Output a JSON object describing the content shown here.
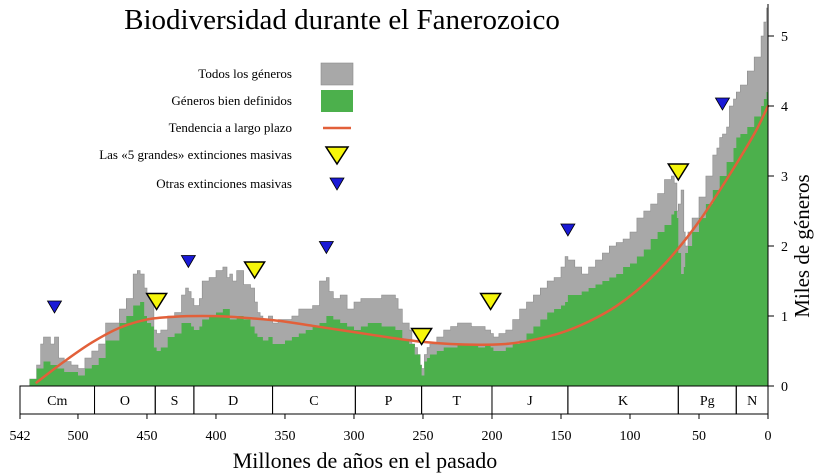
{
  "colors": {
    "all_genera": "#a8a8a8",
    "well_defined": "#4cb04c",
    "trend": "#e2603a",
    "big_five": "#f6f60a",
    "other_extinction": "#1a1ad6"
  },
  "chart_data": {
    "type": "area",
    "title": "Biodiversidad durante el Fanerozoico",
    "xlabel": "Millones de años en el pasado",
    "ylabel": "Miles de géneros",
    "xlim": [
      542,
      0
    ],
    "ylim": [
      0,
      5.5
    ],
    "x_ticks": [
      542,
      500,
      450,
      400,
      350,
      300,
      250,
      200,
      150,
      100,
      50,
      0
    ],
    "y_ticks": [
      0,
      1,
      2,
      3,
      4,
      5
    ],
    "legend": [
      {
        "key": "all",
        "label": "Todos los géneros",
        "marker": "gray-square"
      },
      {
        "key": "defined",
        "label": "Géneros bien definidos",
        "marker": "green-square"
      },
      {
        "key": "trend",
        "label": "Tendencia a largo plazo",
        "marker": "orange-line"
      },
      {
        "key": "big5",
        "label": "Las «5 grandes» extinciones masivas",
        "marker": "yellow-triangle"
      },
      {
        "key": "other",
        "label": "Otras extinciones masivas",
        "marker": "blue-triangle"
      }
    ],
    "periods": [
      {
        "label": "Cm",
        "start": 542,
        "end": 488
      },
      {
        "label": "O",
        "start": 488,
        "end": 444
      },
      {
        "label": "S",
        "start": 444,
        "end": 416
      },
      {
        "label": "D",
        "start": 416,
        "end": 359
      },
      {
        "label": "C",
        "start": 359,
        "end": 299
      },
      {
        "label": "P",
        "start": 299,
        "end": 251
      },
      {
        "label": "T",
        "start": 251,
        "end": 200
      },
      {
        "label": "J",
        "start": 200,
        "end": 145
      },
      {
        "label": "K",
        "start": 145,
        "end": 65
      },
      {
        "label": "Pg",
        "start": 65,
        "end": 23
      },
      {
        "label": "N",
        "start": 23,
        "end": 0
      }
    ],
    "series": [
      {
        "name": "Todos los géneros",
        "x": [
          542,
          535,
          530,
          527,
          525,
          520,
          517,
          514,
          510,
          505,
          500,
          495,
          490,
          488,
          485,
          480,
          470,
          465,
          460,
          457,
          455,
          452,
          450,
          447,
          445,
          443,
          440,
          435,
          430,
          425,
          422,
          420,
          418,
          416,
          412,
          410,
          405,
          400,
          395,
          392,
          390,
          388,
          385,
          380,
          375,
          372,
          370,
          368,
          366,
          362,
          359,
          355,
          350,
          345,
          340,
          335,
          330,
          325,
          320,
          318,
          315,
          310,
          305,
          300,
          295,
          290,
          285,
          280,
          275,
          270,
          268,
          265,
          262,
          260,
          258,
          256,
          254,
          252,
          251,
          249,
          247,
          245,
          240,
          235,
          230,
          225,
          220,
          215,
          210,
          205,
          201,
          199,
          195,
          190,
          185,
          180,
          175,
          170,
          165,
          160,
          155,
          150,
          147,
          145,
          140,
          135,
          130,
          125,
          120,
          115,
          110,
          105,
          100,
          95,
          90,
          85,
          80,
          75,
          70,
          68,
          66,
          65,
          63,
          61,
          60,
          58,
          55,
          50,
          45,
          40,
          37,
          35,
          33,
          30,
          28,
          25,
          23,
          20,
          15,
          10,
          5,
          3,
          1,
          0
        ],
        "values": [
          0.0,
          0.1,
          0.3,
          0.6,
          0.7,
          0.6,
          0.7,
          0.4,
          0.35,
          0.3,
          0.25,
          0.4,
          0.5,
          0.5,
          0.6,
          0.9,
          1.1,
          1.25,
          1.6,
          1.65,
          1.6,
          1.4,
          1.3,
          1.25,
          0.8,
          0.75,
          0.8,
          1.0,
          1.05,
          1.3,
          1.4,
          1.35,
          1.25,
          1.15,
          1.25,
          1.5,
          1.55,
          1.65,
          1.7,
          1.55,
          1.6,
          1.5,
          1.65,
          1.45,
          1.4,
          1.2,
          1.05,
          1.0,
          0.95,
          1.0,
          0.9,
          0.95,
          0.95,
          1.0,
          1.1,
          1.1,
          1.15,
          1.5,
          1.55,
          1.35,
          1.25,
          1.3,
          1.1,
          1.2,
          1.25,
          1.25,
          1.25,
          1.3,
          1.3,
          1.25,
          1.1,
          0.9,
          0.9,
          0.8,
          0.6,
          0.55,
          0.45,
          0.3,
          0.25,
          0.45,
          0.55,
          0.6,
          0.7,
          0.8,
          0.85,
          0.9,
          0.9,
          0.85,
          0.85,
          0.8,
          0.75,
          0.7,
          0.75,
          0.8,
          0.95,
          1.1,
          1.2,
          1.3,
          1.4,
          1.5,
          1.55,
          1.7,
          1.85,
          1.8,
          1.7,
          1.6,
          1.7,
          1.8,
          1.9,
          2.0,
          2.05,
          2.1,
          2.2,
          2.4,
          2.5,
          2.6,
          2.75,
          2.95,
          3.0,
          2.9,
          2.5,
          2.6,
          2.8,
          2.2,
          2.0,
          2.2,
          2.4,
          2.7,
          3.0,
          3.3,
          3.4,
          3.55,
          3.6,
          3.7,
          4.0,
          4.1,
          4.2,
          4.3,
          4.5,
          4.7,
          5.0,
          5.2,
          5.4,
          5.45
        ]
      },
      {
        "name": "Géneros bien definidos",
        "x": [
          542,
          535,
          530,
          525,
          520,
          515,
          510,
          505,
          500,
          495,
          490,
          488,
          485,
          480,
          470,
          465,
          460,
          455,
          452,
          450,
          447,
          445,
          443,
          440,
          435,
          430,
          425,
          420,
          418,
          416,
          412,
          410,
          405,
          400,
          395,
          390,
          385,
          380,
          375,
          372,
          370,
          366,
          362,
          359,
          355,
          350,
          345,
          340,
          335,
          330,
          325,
          320,
          315,
          310,
          305,
          300,
          295,
          290,
          285,
          280,
          275,
          270,
          265,
          260,
          256,
          252,
          251,
          249,
          247,
          245,
          240,
          235,
          230,
          225,
          220,
          215,
          210,
          205,
          201,
          199,
          195,
          190,
          185,
          180,
          175,
          170,
          165,
          160,
          155,
          150,
          147,
          145,
          140,
          135,
          130,
          125,
          120,
          115,
          110,
          105,
          100,
          95,
          90,
          85,
          80,
          75,
          70,
          68,
          66,
          65,
          63,
          61,
          60,
          58,
          55,
          50,
          45,
          40,
          35,
          30,
          25,
          23,
          20,
          15,
          10,
          5,
          3,
          1,
          0
        ],
        "values": [
          0.0,
          0.1,
          0.25,
          0.35,
          0.3,
          0.25,
          0.2,
          0.2,
          0.15,
          0.25,
          0.3,
          0.3,
          0.4,
          0.65,
          0.9,
          1.0,
          1.15,
          1.2,
          1.0,
          0.9,
          0.85,
          0.55,
          0.5,
          0.55,
          0.7,
          0.75,
          0.9,
          0.9,
          0.85,
          0.8,
          0.85,
          0.95,
          1.0,
          1.05,
          1.1,
          0.95,
          1.0,
          0.95,
          0.85,
          0.75,
          0.7,
          0.65,
          0.7,
          0.6,
          0.6,
          0.65,
          0.7,
          0.75,
          0.8,
          0.85,
          0.9,
          1.0,
          0.95,
          0.9,
          0.85,
          0.8,
          0.85,
          0.9,
          0.9,
          0.85,
          0.85,
          0.8,
          0.65,
          0.6,
          0.45,
          0.3,
          0.15,
          0.35,
          0.4,
          0.45,
          0.5,
          0.55,
          0.55,
          0.6,
          0.6,
          0.6,
          0.55,
          0.6,
          0.55,
          0.5,
          0.5,
          0.55,
          0.6,
          0.65,
          0.75,
          0.85,
          0.95,
          1.05,
          1.1,
          1.15,
          1.2,
          1.3,
          1.3,
          1.35,
          1.4,
          1.45,
          1.5,
          1.55,
          1.6,
          1.7,
          1.75,
          1.85,
          1.95,
          2.1,
          2.2,
          2.3,
          2.45,
          2.5,
          2.4,
          1.9,
          1.6,
          1.7,
          1.9,
          2.0,
          2.2,
          2.4,
          2.6,
          2.8,
          3.0,
          3.2,
          3.4,
          3.55,
          3.6,
          3.7,
          3.85,
          4.0,
          4.1,
          4.2,
          4.25
        ]
      },
      {
        "name": "Tendencia a largo plazo",
        "x": [
          530,
          510,
          490,
          470,
          450,
          430,
          410,
          390,
          370,
          350,
          330,
          310,
          290,
          270,
          250,
          230,
          210,
          190,
          170,
          150,
          130,
          110,
          90,
          70,
          50,
          30,
          10,
          0
        ],
        "values": [
          0.05,
          0.35,
          0.62,
          0.83,
          0.95,
          0.99,
          1.0,
          0.99,
          0.96,
          0.92,
          0.86,
          0.8,
          0.74,
          0.68,
          0.63,
          0.6,
          0.59,
          0.6,
          0.66,
          0.76,
          0.92,
          1.14,
          1.45,
          1.85,
          2.35,
          2.95,
          3.6,
          4.0
        ]
      }
    ],
    "extinctions_big_five": [
      443,
      372,
      251,
      201,
      65
    ],
    "extinctions_other": [
      517,
      420,
      320,
      145,
      33
    ]
  }
}
